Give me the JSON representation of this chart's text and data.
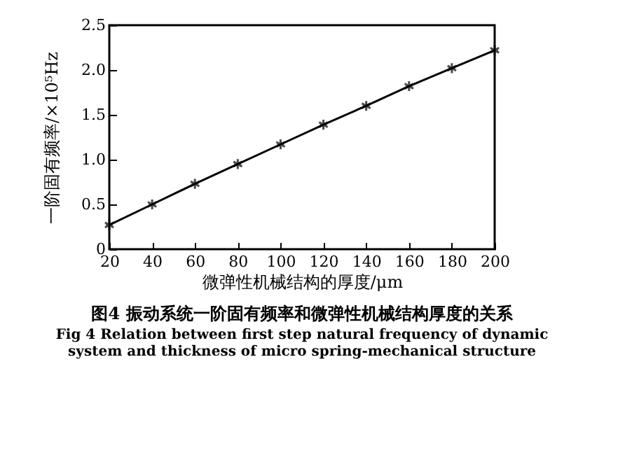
{
  "chart_data": {
    "type": "line",
    "title": "图4  振动系统一阶固有频率和微弹性机械结构厚度的关系",
    "subtitle": "Fig 4  Relation between first step natural frequency of dynamic system and thickness of micro spring-mechanical structure",
    "xlabel": "微弹性机械结构的厚度/μm",
    "ylabel": "一阶固有频率/×10⁵Hz",
    "x": [
      20,
      40,
      60,
      80,
      100,
      120,
      140,
      160,
      180,
      200
    ],
    "series": [
      {
        "color": "#000000",
        "values": [
          0.27,
          0.5,
          0.73,
          0.95,
          1.17,
          1.39,
          1.6,
          1.82,
          2.02,
          2.22
        ]
      }
    ],
    "xlim": [
      20,
      200
    ],
    "xticks": [
      20,
      40,
      60,
      80,
      100,
      120,
      140,
      160,
      180,
      200
    ],
    "ylim": [
      0,
      2.5
    ],
    "yticks": [
      0,
      0.5,
      {
        "value": 1,
        "label": "1.0"
      },
      1.5,
      {
        "value": 2,
        "label": "2.0"
      },
      2.5
    ],
    "grid": false,
    "legend": false,
    "marker": "cross",
    "line_style": "solid"
  }
}
